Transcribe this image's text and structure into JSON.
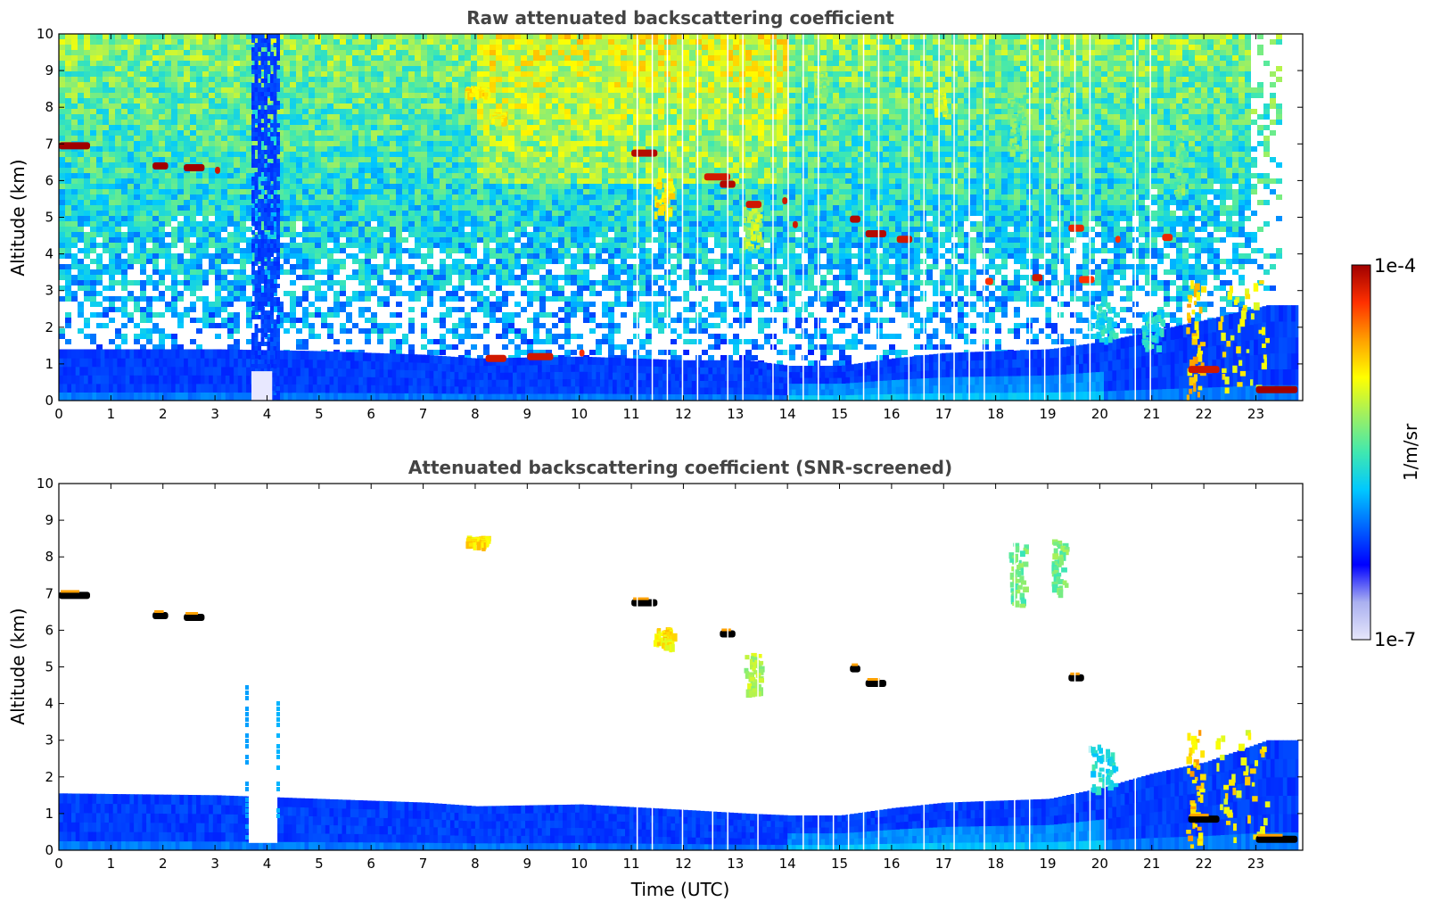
{
  "chart_data": [
    {
      "type": "heatmap",
      "title": "Raw attenuated backscattering coefficient",
      "xlabel": "",
      "ylabel": "Altitude (km)",
      "xlim": [
        0,
        23.9
      ],
      "ylim": [
        0,
        10
      ],
      "xticks": [
        "0",
        "1",
        "2",
        "3",
        "4",
        "5",
        "6",
        "7",
        "8",
        "9",
        "10",
        "11",
        "12",
        "13",
        "14",
        "15",
        "16",
        "17",
        "18",
        "19",
        "20",
        "21",
        "22",
        "23"
      ],
      "yticks": [
        "0",
        "1",
        "2",
        "3",
        "4",
        "5",
        "6",
        "7",
        "8",
        "9",
        "10"
      ],
      "noise_top": 10,
      "boundary_layer": [
        [
          0,
          1.4
        ],
        [
          3,
          1.4
        ],
        [
          5,
          1.35
        ],
        [
          7,
          1.25
        ],
        [
          8,
          1.15
        ],
        [
          10,
          1.2
        ],
        [
          12,
          1.1
        ],
        [
          13.2,
          1.1
        ],
        [
          14,
          0.95
        ],
        [
          15,
          0.95
        ],
        [
          16,
          1.15
        ],
        [
          17,
          1.3
        ],
        [
          18,
          1.35
        ],
        [
          19,
          1.4
        ],
        [
          20,
          1.6
        ],
        [
          21,
          1.9
        ],
        [
          22,
          2.2
        ],
        [
          23.2,
          2.6
        ]
      ],
      "cloud_layers": [
        {
          "t0": 0.0,
          "t1": 0.6,
          "z": 6.95,
          "level": 1.0
        },
        {
          "t0": 1.8,
          "t1": 2.1,
          "z": 6.4,
          "level": 1.0
        },
        {
          "t0": 2.4,
          "t1": 2.8,
          "z": 6.35,
          "level": 1.0
        },
        {
          "t0": 3.0,
          "t1": 3.1,
          "z": 6.28,
          "level": 0.95
        },
        {
          "t0": 8.2,
          "t1": 8.6,
          "z": 1.15,
          "level": 0.95
        },
        {
          "t0": 9.0,
          "t1": 9.5,
          "z": 1.2,
          "level": 0.95
        },
        {
          "t0": 10.0,
          "t1": 10.1,
          "z": 1.3,
          "level": 0.9
        },
        {
          "t0": 11.0,
          "t1": 11.5,
          "z": 6.75,
          "level": 0.98
        },
        {
          "t0": 12.4,
          "t1": 12.9,
          "z": 6.1,
          "level": 0.95
        },
        {
          "t0": 12.7,
          "t1": 13.0,
          "z": 5.9,
          "level": 0.98
        },
        {
          "t0": 13.2,
          "t1": 13.5,
          "z": 5.35,
          "level": 0.95
        },
        {
          "t0": 13.9,
          "t1": 14.0,
          "z": 5.45,
          "level": 0.95
        },
        {
          "t0": 14.1,
          "t1": 14.2,
          "z": 4.8,
          "level": 0.95
        },
        {
          "t0": 15.2,
          "t1": 15.4,
          "z": 4.95,
          "level": 0.98
        },
        {
          "t0": 15.5,
          "t1": 15.9,
          "z": 4.55,
          "level": 0.98
        },
        {
          "t0": 16.1,
          "t1": 16.4,
          "z": 4.4,
          "level": 0.95
        },
        {
          "t0": 17.8,
          "t1": 17.95,
          "z": 3.25,
          "level": 0.9
        },
        {
          "t0": 18.7,
          "t1": 18.9,
          "z": 3.35,
          "level": 0.95
        },
        {
          "t0": 19.4,
          "t1": 19.7,
          "z": 4.7,
          "level": 0.92
        },
        {
          "t0": 19.6,
          "t1": 19.9,
          "z": 3.3,
          "level": 0.9
        },
        {
          "t0": 20.3,
          "t1": 20.4,
          "z": 4.4,
          "level": 0.9
        },
        {
          "t0": 21.2,
          "t1": 21.4,
          "z": 4.45,
          "level": 0.92
        },
        {
          "t0": 21.7,
          "t1": 22.3,
          "z": 0.85,
          "level": 0.95
        },
        {
          "t0": 23.0,
          "t1": 23.8,
          "z": 0.3,
          "level": 1.0
        }
      ],
      "plumes": [
        {
          "t": 8.0,
          "z0": 8.5,
          "z1": 8.3,
          "w": 0.4,
          "level": 0.72
        },
        {
          "t": 8.4,
          "z0": 7.8,
          "z1": 7.6,
          "w": 0.25,
          "level": 0.7
        },
        {
          "t": 11.6,
          "z0": 6.0,
          "z1": 5.0,
          "w": 0.35,
          "level": 0.72
        },
        {
          "t": 13.3,
          "z0": 5.3,
          "z1": 4.1,
          "w": 0.35,
          "level": 0.62
        },
        {
          "t": 14.6,
          "z0": 8.9,
          "z1": 8.4,
          "w": 0.2,
          "level": 0.58
        },
        {
          "t": 16.9,
          "z0": 8.4,
          "z1": 7.8,
          "w": 0.2,
          "level": 0.65
        },
        {
          "t": 18.4,
          "z0": 8.3,
          "z1": 6.6,
          "w": 0.3,
          "level": 0.55
        },
        {
          "t": 19.2,
          "z0": 8.4,
          "z1": 7.0,
          "w": 0.25,
          "level": 0.55
        },
        {
          "t": 21.5,
          "z0": 7.2,
          "z1": 5.5,
          "w": 0.15,
          "level": 0.55
        },
        {
          "t": 21.8,
          "z0": 3.2,
          "z1": 0.0,
          "w": 0.3,
          "level": 0.75
        },
        {
          "t": 22.7,
          "z0": 3.2,
          "z1": 0.2,
          "w": 1.0,
          "level": 0.7
        },
        {
          "t": 20.0,
          "z0": 2.6,
          "z1": 1.6,
          "w": 0.5,
          "level": 0.45
        },
        {
          "t": 21.0,
          "z0": 2.4,
          "z1": 1.4,
          "w": 0.4,
          "level": 0.45
        }
      ],
      "data_gaps": [
        3.5,
        4.2
      ]
    },
    {
      "type": "heatmap",
      "title": "Attenuated backscattering coefficient (SNR-screened)",
      "xlabel": "Time (UTC)",
      "ylabel": "Altitude (km)",
      "xlim": [
        0,
        23.9
      ],
      "ylim": [
        0,
        10
      ],
      "xticks": [
        "0",
        "1",
        "2",
        "3",
        "4",
        "5",
        "6",
        "7",
        "8",
        "9",
        "10",
        "11",
        "12",
        "13",
        "14",
        "15",
        "16",
        "17",
        "18",
        "19",
        "20",
        "21",
        "22",
        "23"
      ],
      "yticks": [
        "0",
        "1",
        "2",
        "3",
        "4",
        "5",
        "6",
        "7",
        "8",
        "9",
        "10"
      ],
      "noise_top": 0,
      "boundary_layer": [
        [
          0,
          1.55
        ],
        [
          3,
          1.5
        ],
        [
          5,
          1.4
        ],
        [
          7,
          1.3
        ],
        [
          8,
          1.2
        ],
        [
          10,
          1.25
        ],
        [
          12,
          1.1
        ],
        [
          13.2,
          1.0
        ],
        [
          14,
          0.95
        ],
        [
          15,
          0.95
        ],
        [
          16,
          1.15
        ],
        [
          17,
          1.3
        ],
        [
          18,
          1.35
        ],
        [
          19,
          1.4
        ],
        [
          20,
          1.7
        ],
        [
          21,
          2.1
        ],
        [
          22,
          2.4
        ],
        [
          23.2,
          3.0
        ]
      ],
      "cloud_layers": [
        {
          "t0": 0.0,
          "t1": 0.6,
          "z": 6.95,
          "level": 1.0
        },
        {
          "t0": 1.8,
          "t1": 2.1,
          "z": 6.4,
          "level": 1.0
        },
        {
          "t0": 2.4,
          "t1": 2.8,
          "z": 6.35,
          "level": 1.0
        },
        {
          "t0": 11.0,
          "t1": 11.5,
          "z": 6.75,
          "level": 0.98
        },
        {
          "t0": 12.7,
          "t1": 13.0,
          "z": 5.9,
          "level": 0.98
        },
        {
          "t0": 15.2,
          "t1": 15.4,
          "z": 4.95,
          "level": 0.98
        },
        {
          "t0": 15.5,
          "t1": 15.9,
          "z": 4.55,
          "level": 0.98
        },
        {
          "t0": 19.4,
          "t1": 19.7,
          "z": 4.7,
          "level": 0.92
        },
        {
          "t0": 21.7,
          "t1": 22.3,
          "z": 0.85,
          "level": 0.95
        },
        {
          "t0": 23.0,
          "t1": 23.8,
          "z": 0.3,
          "level": 1.0
        }
      ],
      "plumes": [
        {
          "t": 8.0,
          "z0": 8.5,
          "z1": 8.3,
          "w": 0.4,
          "level": 0.72
        },
        {
          "t": 11.6,
          "z0": 6.0,
          "z1": 5.5,
          "w": 0.35,
          "level": 0.72
        },
        {
          "t": 13.3,
          "z0": 5.3,
          "z1": 4.2,
          "w": 0.3,
          "level": 0.62
        },
        {
          "t": 18.4,
          "z0": 8.3,
          "z1": 6.6,
          "w": 0.3,
          "level": 0.55
        },
        {
          "t": 19.2,
          "z0": 8.4,
          "z1": 7.0,
          "w": 0.25,
          "level": 0.55
        },
        {
          "t": 21.8,
          "z0": 3.2,
          "z1": 0.0,
          "w": 0.3,
          "level": 0.75
        },
        {
          "t": 22.7,
          "z0": 3.2,
          "z1": 0.2,
          "w": 1.0,
          "level": 0.7
        },
        {
          "t": 20.0,
          "z0": 2.8,
          "z1": 1.6,
          "w": 0.5,
          "level": 0.45
        }
      ],
      "data_gaps": [
        3.6,
        4.2
      ]
    }
  ],
  "colorbar": {
    "label": "1/m/sr",
    "max_label": "1e-4",
    "min_label": "1e-7",
    "colors": [
      "#e6e6fa",
      "#aab0f0",
      "#0000ff",
      "#0064ff",
      "#00c8ff",
      "#40e8b0",
      "#a0f060",
      "#ffff00",
      "#ffa000",
      "#ff3000",
      "#a00000"
    ]
  }
}
